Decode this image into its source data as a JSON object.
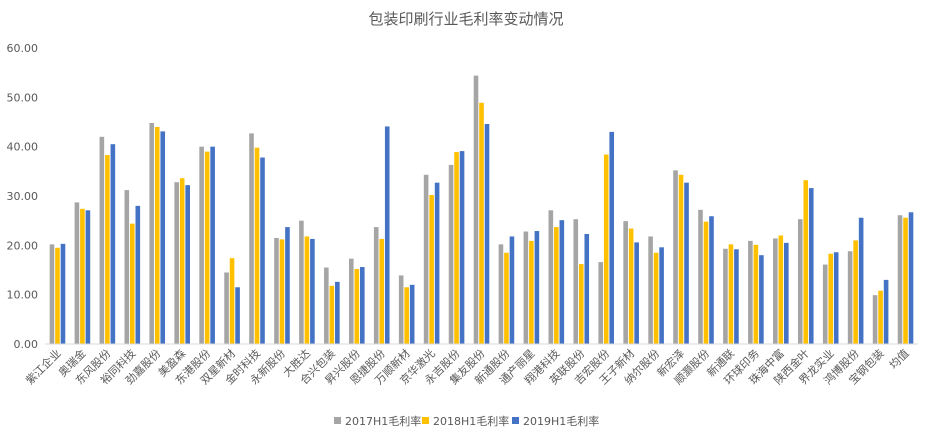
{
  "chart_data": {
    "type": "bar",
    "title": "包装印刷行业毛利率变动情况",
    "xlabel": "",
    "ylabel": "",
    "ylim": [
      0,
      60
    ],
    "yticks": [
      "0.00",
      "10.00",
      "20.00",
      "30.00",
      "40.00",
      "50.00",
      "60.00"
    ],
    "grid": false,
    "legend_position": "bottom",
    "categories": [
      "紫江企业",
      "奥瑞金",
      "东风股份",
      "裕同科技",
      "劲嘉股份",
      "美盈森",
      "东港股份",
      "双星新材",
      "金时科技",
      "永新股份",
      "大胜达",
      "合兴包装",
      "昇兴股份",
      "恩捷股份",
      "万顺新材",
      "京华激光",
      "永吉股份",
      "集友股份",
      "新通股份",
      "通产丽星",
      "翔港科技",
      "英联股份",
      "吉宏股份",
      "王子新材",
      "纳尔股份",
      "新宏泽",
      "顺灏股份",
      "新通联",
      "环球印务",
      "珠海中富",
      "陕西金叶",
      "界龙实业",
      "鸿博股份",
      "宝钢包装",
      "均值"
    ],
    "series": [
      {
        "name": "2017H1毛利率",
        "color": "#a5a5a5",
        "values": [
          20.2,
          28.7,
          42.0,
          31.2,
          44.8,
          32.8,
          40.0,
          14.5,
          42.7,
          21.5,
          25.0,
          15.5,
          17.3,
          23.7,
          13.9,
          34.3,
          36.3,
          54.4,
          20.2,
          22.8,
          27.1,
          25.3,
          16.6,
          24.9,
          21.8,
          35.2,
          27.2,
          19.3,
          20.9,
          21.4,
          25.3,
          16.1,
          18.8,
          9.9,
          26.1
        ]
      },
      {
        "name": "2018H1毛利率",
        "color": "#ffc000",
        "values": [
          19.5,
          27.4,
          38.3,
          24.4,
          44.0,
          33.6,
          39.0,
          17.4,
          39.8,
          21.2,
          21.8,
          11.8,
          15.2,
          21.3,
          11.5,
          30.2,
          38.9,
          48.9,
          18.5,
          20.9,
          23.7,
          16.2,
          38.4,
          23.4,
          18.5,
          34.3,
          24.8,
          20.2,
          20.1,
          22.0,
          33.2,
          18.3,
          21.0,
          10.8,
          25.6
        ]
      },
      {
        "name": "2019H1毛利率",
        "color": "#4472c4",
        "values": [
          20.3,
          27.1,
          40.5,
          28.0,
          43.1,
          32.2,
          40.0,
          11.5,
          37.8,
          23.7,
          21.3,
          12.6,
          15.6,
          44.1,
          12.0,
          32.7,
          39.1,
          44.6,
          21.8,
          22.9,
          25.1,
          22.3,
          43.0,
          20.6,
          19.6,
          32.7,
          25.9,
          19.2,
          18.0,
          20.5,
          31.6,
          18.6,
          25.6,
          13.0,
          26.7
        ]
      }
    ]
  }
}
